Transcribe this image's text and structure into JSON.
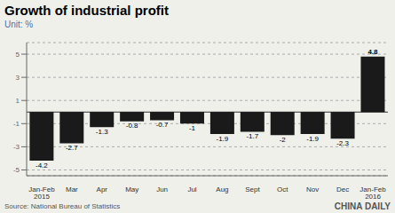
{
  "chart_data": {
    "type": "bar",
    "title": "Growth of industrial profit",
    "subtitle": "Unit: %",
    "categories": [
      "Jan-Feb\n2015",
      "Mar",
      "Apr",
      "May",
      "Jun",
      "Jul",
      "Aug",
      "Sept",
      "Oct",
      "Nov",
      "Dec",
      "Jan-Feb\n2016"
    ],
    "values": [
      -4.2,
      -2.7,
      -1.3,
      -0.8,
      -0.7,
      -1.0,
      -1.9,
      -1.7,
      -2.0,
      -1.9,
      -2.3,
      4.8
    ],
    "color": "#1a1a1a",
    "ylim": [
      -5.5,
      6.0
    ],
    "yticks": [
      -5,
      -3,
      -1,
      1,
      3,
      5
    ],
    "grid": true,
    "data_labels": true,
    "annotations": [
      "Source: National Bureau of Statistics",
      "CHINA DAILY"
    ]
  }
}
